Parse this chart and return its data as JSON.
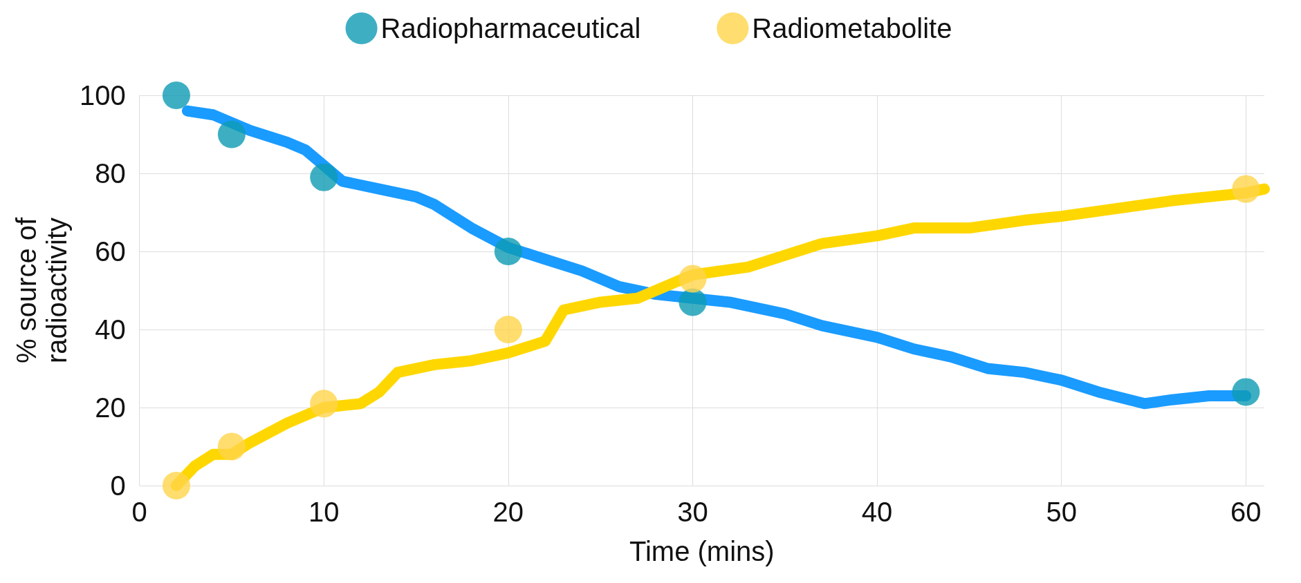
{
  "chart_data": {
    "type": "scatter",
    "xlabel": "Time (mins)",
    "ylabel": "% source of\nradioactivity",
    "xlim": [
      0,
      61
    ],
    "xticks": [
      0,
      10,
      20,
      30,
      40,
      50,
      60
    ],
    "ylim": [
      0,
      100
    ],
    "yticks": [
      0,
      20,
      40,
      60,
      80,
      100
    ],
    "grid": true,
    "legend": "top",
    "marker": "circle",
    "series": [
      {
        "name": "Radiopharmaceutical",
        "color": "#0e9bb3",
        "x": [
          2,
          5,
          10,
          20,
          30,
          60
        ],
        "values": [
          100,
          90,
          79,
          60,
          47,
          24
        ]
      },
      {
        "name": "Radiometabolite",
        "color": "#ffd54a",
        "x": [
          2,
          5,
          10,
          20,
          30,
          60
        ],
        "values": [
          0,
          10,
          21,
          40,
          53,
          76
        ]
      },
      {
        "type": "line",
        "marker": "none",
        "color": "#1a9bff",
        "x": [
          2.6,
          4,
          5,
          6,
          8,
          9,
          10,
          11,
          13,
          15,
          16,
          18,
          20,
          22,
          24,
          26,
          28,
          30,
          32,
          35,
          37,
          40,
          42,
          44,
          46,
          48,
          50,
          52,
          54.5,
          56,
          58,
          60
        ],
        "values": [
          96,
          95,
          93,
          91,
          88,
          86,
          82,
          78,
          76,
          74,
          72,
          66,
          61,
          58,
          55,
          51,
          49,
          48,
          47,
          44,
          41,
          38,
          35,
          33,
          30,
          29,
          27,
          24,
          21,
          22,
          23,
          23
        ]
      },
      {
        "type": "line",
        "marker": "none",
        "color": "#ffd700",
        "x": [
          2,
          3,
          4,
          5,
          6,
          8,
          10,
          12,
          13,
          14,
          16,
          18,
          20,
          22,
          23,
          25,
          27,
          29,
          30,
          33,
          35,
          37,
          40,
          42,
          45,
          48,
          50,
          53,
          56,
          58,
          60,
          61
        ],
        "values": [
          0,
          5,
          8,
          8,
          11,
          16,
          20,
          21,
          24,
          29,
          31,
          32,
          34,
          37,
          45,
          47,
          48,
          52,
          54,
          56,
          59,
          62,
          64,
          66,
          66,
          68,
          69,
          71,
          73,
          74,
          75,
          76
        ]
      }
    ]
  }
}
